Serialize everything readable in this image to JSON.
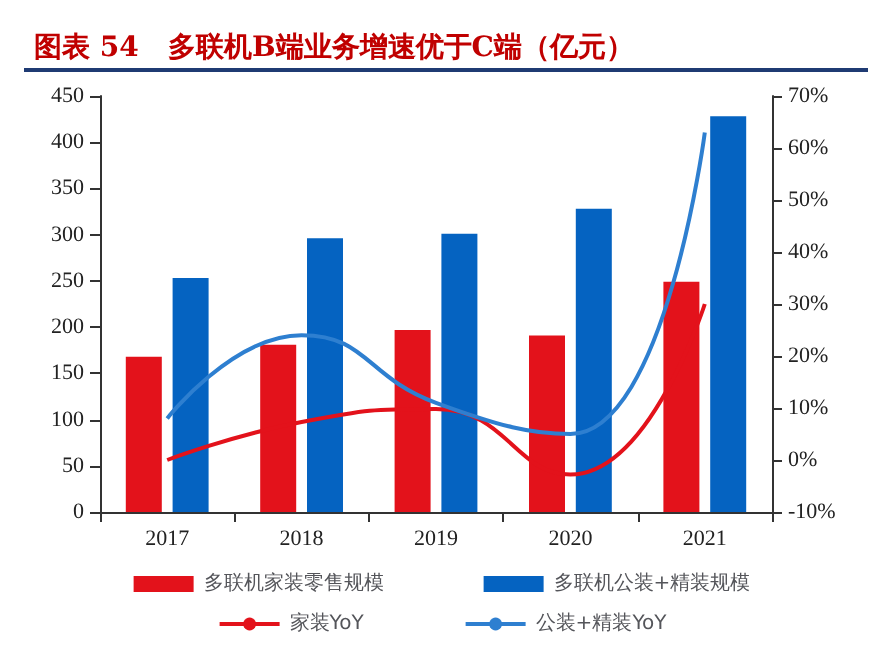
{
  "chart_data": {
    "type": "bar",
    "title": "图表 54   多联机B端业务增速优于C端（亿元）",
    "categories": [
      "2017",
      "2018",
      "2019",
      "2020",
      "2021"
    ],
    "series": [
      {
        "name": "多联机家装零售规模",
        "color": "#e3121b",
        "values": [
          168,
          181,
          197,
          191,
          249
        ]
      },
      {
        "name": "多联机公装+精装规模",
        "color": "#0563c1",
        "values": [
          253,
          296,
          301,
          328,
          428
        ]
      },
      {
        "name": "家装YoY",
        "type": "line",
        "axis": "y2",
        "color": "#e3121b",
        "values": [
          0,
          7.3,
          9.8,
          -2.8,
          30
        ]
      },
      {
        "name": "公装+精装YoY",
        "type": "line",
        "axis": "y2",
        "color": "#2e7fd0",
        "values": [
          8,
          24,
          11,
          5,
          63
        ]
      }
    ],
    "ylim": [
      0,
      450
    ],
    "yticks": [
      0,
      50,
      100,
      150,
      200,
      250,
      300,
      350,
      400,
      450
    ],
    "y2lim": [
      -10,
      70
    ],
    "y2ticks": [
      {
        "value": -10,
        "label": "-10%"
      },
      {
        "value": 0,
        "label": "0%"
      },
      {
        "value": 10,
        "label": "10%"
      },
      {
        "value": 20,
        "label": "20%"
      },
      {
        "value": 30,
        "label": "30%"
      },
      {
        "value": 40,
        "label": "40%"
      },
      {
        "value": 50,
        "label": "50%"
      },
      {
        "value": 60,
        "label": "60%"
      },
      {
        "value": 70,
        "label": "70%"
      }
    ],
    "legend": "bottom",
    "grid": false,
    "marker": "none"
  }
}
